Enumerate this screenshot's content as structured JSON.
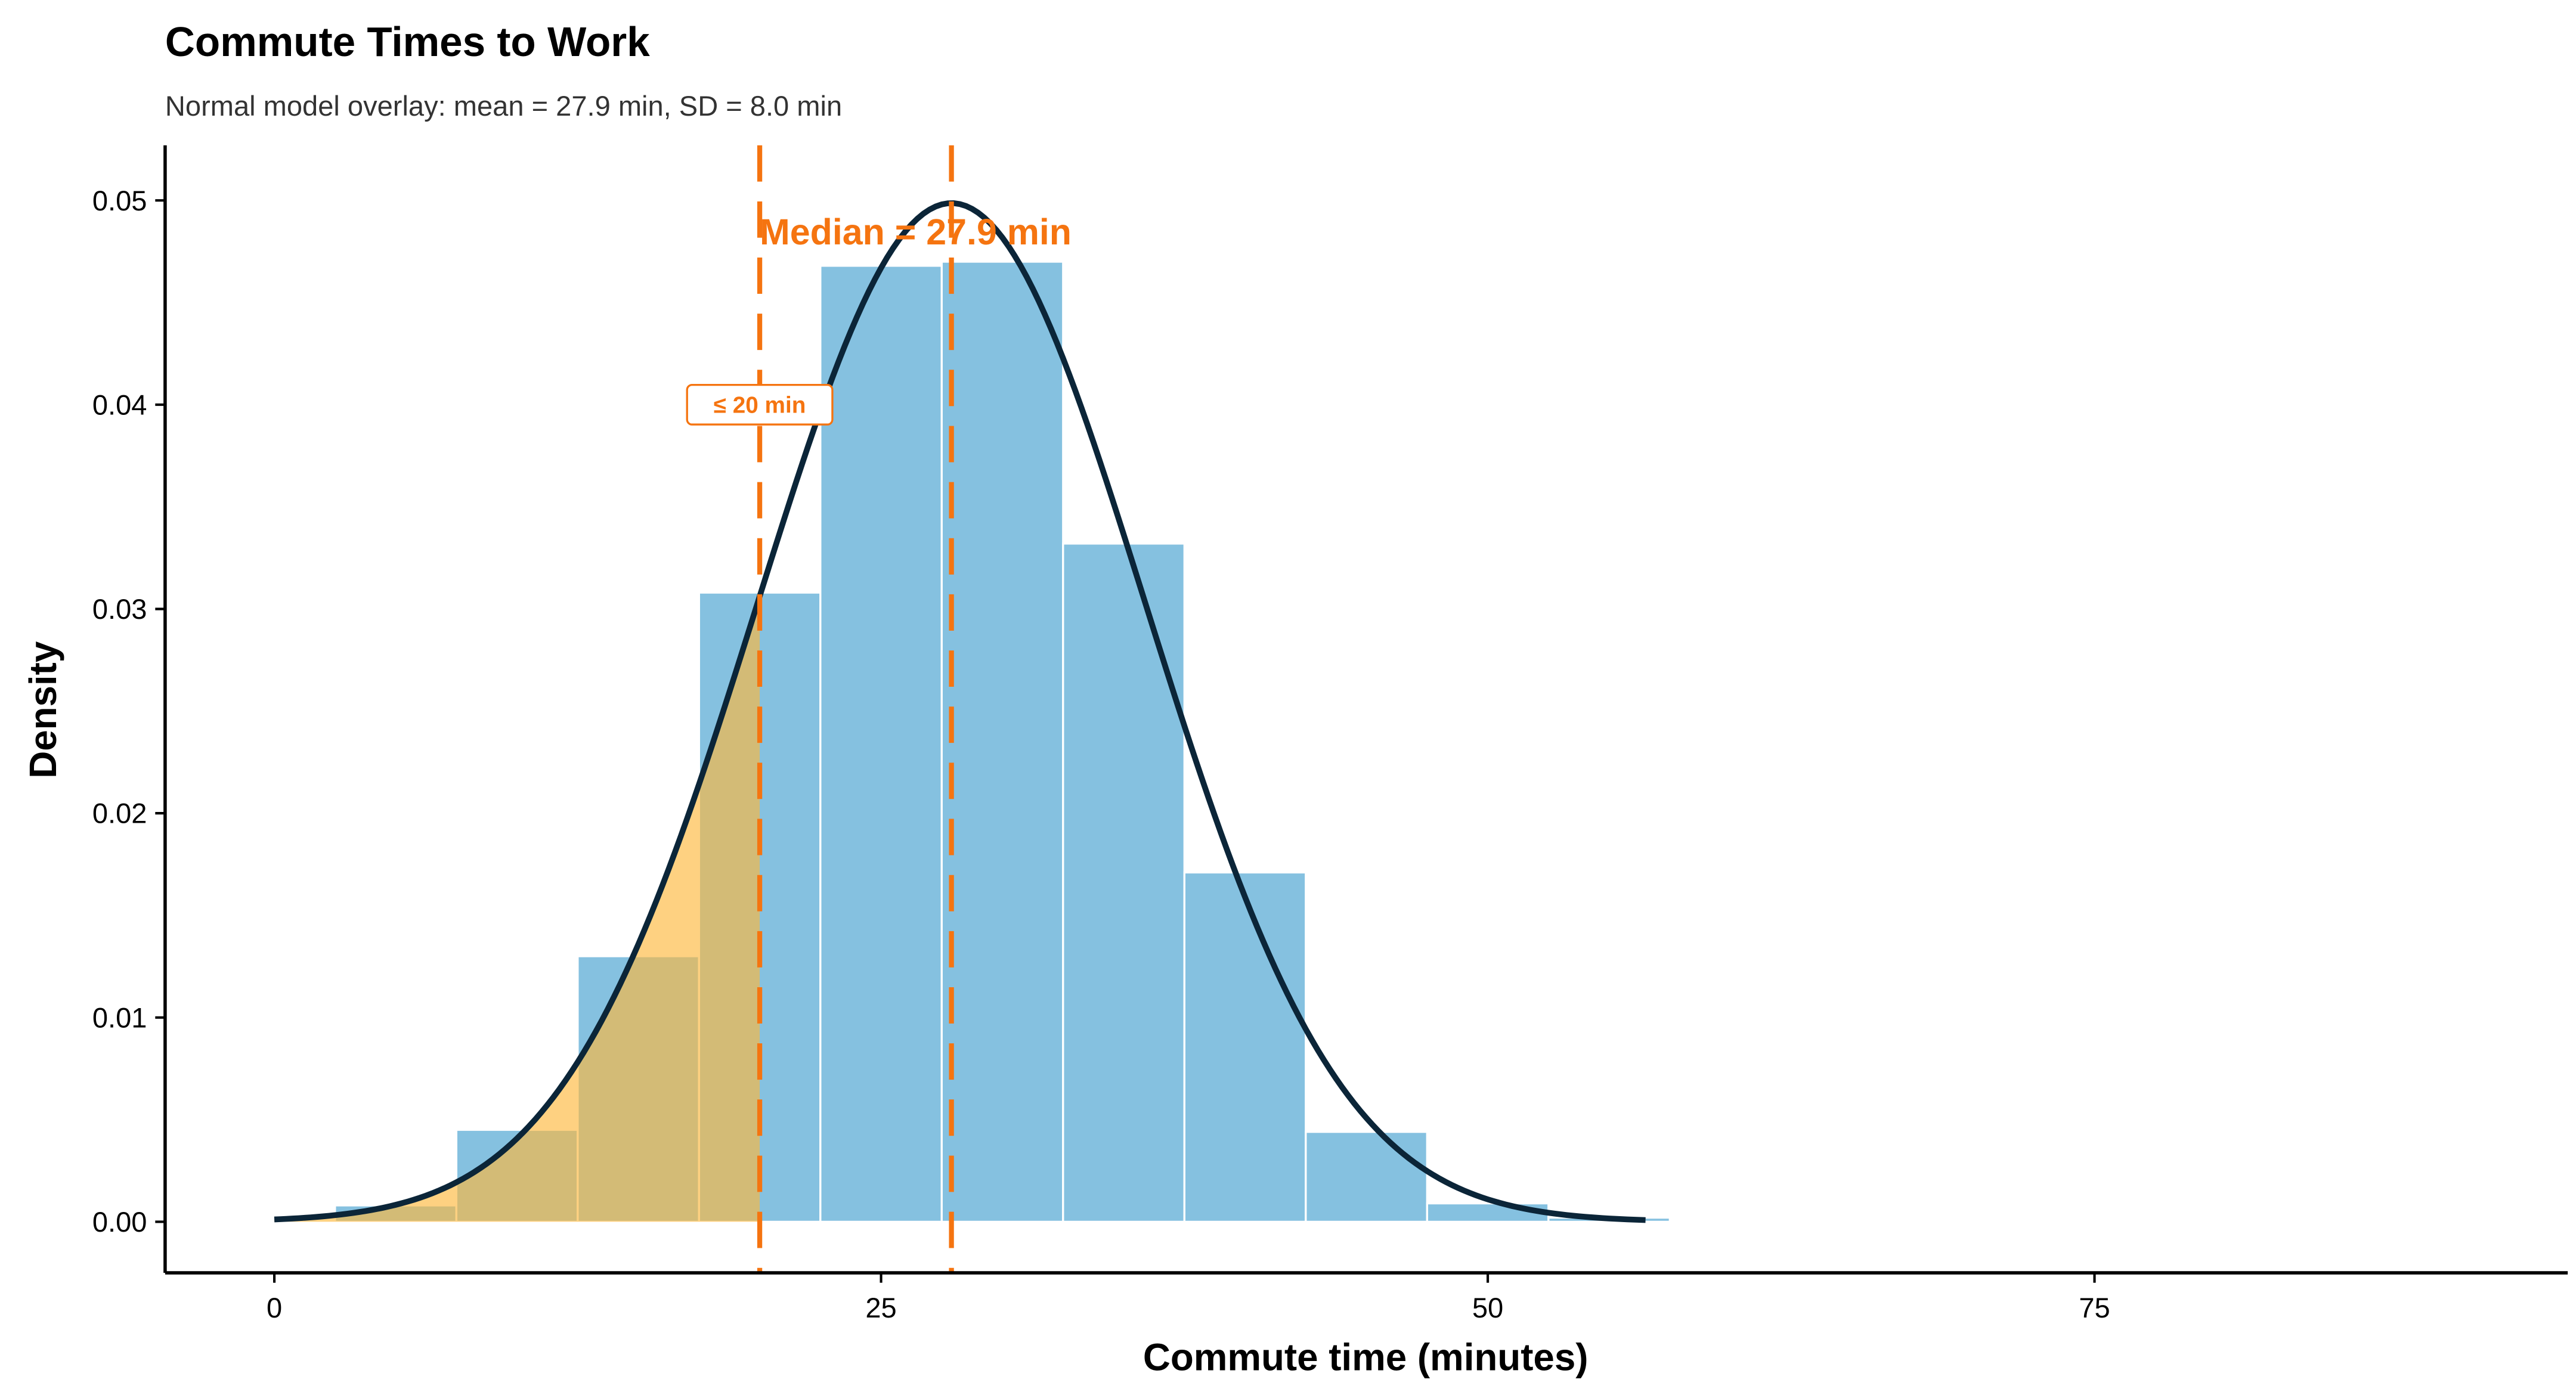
{
  "chart_data": {
    "type": "bar",
    "title": "Commute Times to Work",
    "subtitle": "Normal model overlay: mean = 27.9 min, SD = 8.0 min",
    "xlabel": "Commute time (minutes)",
    "ylabel": "Density",
    "xlim": [
      -4.5,
      94.5
    ],
    "ylim": [
      -0.0025,
      0.0527
    ],
    "x_ticks": [
      0,
      25,
      50,
      75
    ],
    "x_tick_labels": [
      "0",
      "25",
      "50",
      "75"
    ],
    "y_ticks": [
      0,
      0.01,
      0.02,
      0.03,
      0.04,
      0.05
    ],
    "y_tick_labels": [
      "0.00",
      "0.01",
      "0.02",
      "0.03",
      "0.04",
      "0.05"
    ],
    "histogram": {
      "bin_width": 5,
      "bin_starts": [
        2.5,
        7.5,
        12.5,
        17.5,
        22.5,
        27.5,
        32.5,
        37.5,
        42.5,
        47.5,
        52.5
      ],
      "density": [
        0.0008,
        0.0045,
        0.013,
        0.0308,
        0.0468,
        0.047,
        0.0332,
        0.0171,
        0.0044,
        0.0009,
        0.0002
      ],
      "color": "#85C1E0"
    },
    "normal_curve": {
      "mean": 27.9,
      "sd": 8.0,
      "x_range": [
        0,
        56.5
      ],
      "color": "#0B2538"
    },
    "shaded_region": {
      "from": 0,
      "to": 20,
      "color": "#FDB93E"
    },
    "reference_lines": [
      {
        "x": 20,
        "label": "≤ 20 min",
        "label_y": 0.04,
        "color": "#F57410"
      },
      {
        "x": 27.9,
        "label": "Median = 27.9 min",
        "label_y": 0.0485,
        "color": "#F57410"
      }
    ]
  }
}
